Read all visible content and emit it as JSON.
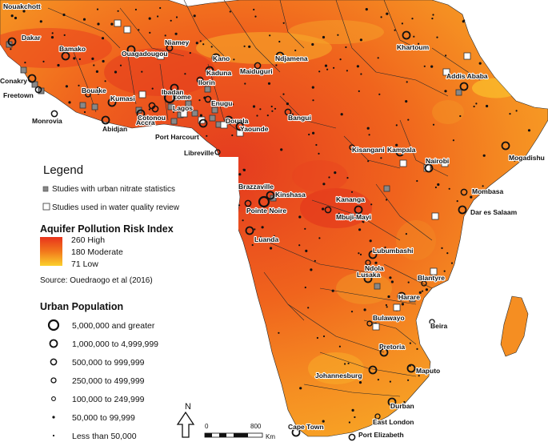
{
  "colors": {
    "ocean": "#ffffff",
    "risk_high": "#e8331c",
    "risk_moderate": "#f2781c",
    "risk_low": "#fbc329",
    "border": "#2a2a2a",
    "nitrate_study_marker": "#888888",
    "review_study_marker": "#ffffff"
  },
  "legend": {
    "title": "Legend",
    "nitrate_label": "Studies with urban nitrate statistics",
    "review_label": "Studies used in water quality review",
    "risk_title": "Aquifer Pollution Risk Index",
    "risk_high": "260 High",
    "risk_moderate": "180 Moderate",
    "risk_low": "71 Low",
    "source": "Source: Ouedraogo et al (2016)",
    "pop_title": "Urban Population",
    "pop_classes": [
      "5,000,000 and greater",
      "1,000,000 to 4,999,999",
      "500,000 to 999,999",
      "250,000 to 499,999",
      "100,000 to 249,999",
      "50,000 to 99,999",
      "Less than 50,000"
    ]
  },
  "north_arrow": {
    "label": "N",
    "icon": "north-arrow-icon"
  },
  "scale_bar": {
    "start": "0",
    "end": "800",
    "unit": "Km"
  },
  "cities": [
    {
      "name": "Nouakchott",
      "pop_class": 5
    },
    {
      "name": "Dakar",
      "pop_class": 1
    },
    {
      "name": "Bamako",
      "pop_class": 1
    },
    {
      "name": "Conakry",
      "pop_class": 1
    },
    {
      "name": "Freetown",
      "pop_class": 2
    },
    {
      "name": "Monrovia",
      "pop_class": 2
    },
    {
      "name": "Bouake",
      "pop_class": 3
    },
    {
      "name": "Kumasi",
      "pop_class": 1
    },
    {
      "name": "Abidjan",
      "pop_class": 1
    },
    {
      "name": "Accra",
      "pop_class": 1
    },
    {
      "name": "Cotonou",
      "pop_class": 2
    },
    {
      "name": "Lome",
      "pop_class": 2
    },
    {
      "name": "Lagos",
      "pop_class": 0
    },
    {
      "name": "Ibadan",
      "pop_class": 1
    },
    {
      "name": "Ilorin",
      "pop_class": 2
    },
    {
      "name": "Ouagadougou",
      "pop_class": 1
    },
    {
      "name": "Niamey",
      "pop_class": 2
    },
    {
      "name": "Kano",
      "pop_class": 1
    },
    {
      "name": "Kaduna",
      "pop_class": 1
    },
    {
      "name": "Maiduguri",
      "pop_class": 2
    },
    {
      "name": "Ndjamena",
      "pop_class": 1
    },
    {
      "name": "Enugu",
      "pop_class": 2
    },
    {
      "name": "Port Harcourt",
      "pop_class": 1
    },
    {
      "name": "Douala",
      "pop_class": 1
    },
    {
      "name": "Yaounde",
      "pop_class": 1
    },
    {
      "name": "Bangui",
      "pop_class": 2
    },
    {
      "name": "Libreville",
      "pop_class": 3
    },
    {
      "name": "Khartoum",
      "pop_class": 1
    },
    {
      "name": "Addis Ababa",
      "pop_class": 1
    },
    {
      "name": "Mogadishu",
      "pop_class": 1
    },
    {
      "name": "Kisangani",
      "pop_class": 3
    },
    {
      "name": "Kampala",
      "pop_class": 1
    },
    {
      "name": "Nairobi",
      "pop_class": 1
    },
    {
      "name": "Brazzaville",
      "pop_class": 1
    },
    {
      "name": "Kinshasa",
      "pop_class": 0
    },
    {
      "name": "Pointe Noire",
      "pop_class": 2
    },
    {
      "name": "Kananga",
      "pop_class": 2
    },
    {
      "name": "Mbuji-Mayi",
      "pop_class": 1
    },
    {
      "name": "Mombasa",
      "pop_class": 2
    },
    {
      "name": "Dar es Salaam",
      "pop_class": 1
    },
    {
      "name": "Luanda",
      "pop_class": 1
    },
    {
      "name": "Lubumbashi",
      "pop_class": 1
    },
    {
      "name": "Ndola",
      "pop_class": 3
    },
    {
      "name": "Lusaka",
      "pop_class": 1
    },
    {
      "name": "Blantyre",
      "pop_class": 3
    },
    {
      "name": "Harare",
      "pop_class": 1
    },
    {
      "name": "Bulawayo",
      "pop_class": 3
    },
    {
      "name": "Beira",
      "pop_class": 3
    },
    {
      "name": "Pretoria",
      "pop_class": 1
    },
    {
      "name": "Johannesburg",
      "pop_class": 1
    },
    {
      "name": "Maputo",
      "pop_class": 1
    },
    {
      "name": "Durban",
      "pop_class": 1
    },
    {
      "name": "East London",
      "pop_class": 3
    },
    {
      "name": "Cape Town",
      "pop_class": 1
    },
    {
      "name": "Port Elizabeth",
      "pop_class": 2
    }
  ]
}
